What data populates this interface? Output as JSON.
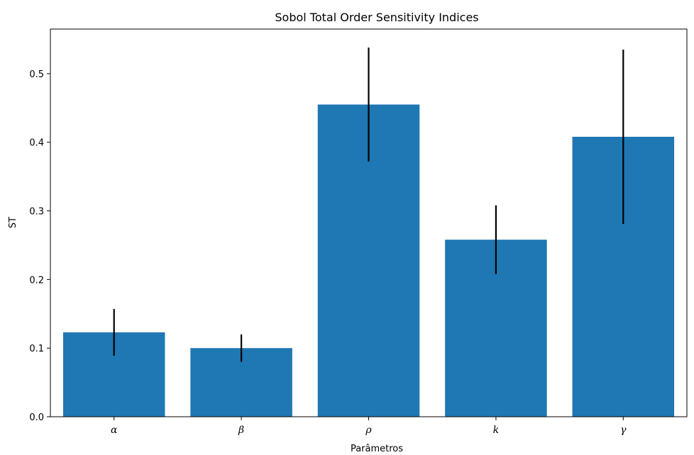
{
  "chart_data": {
    "type": "bar",
    "title": "Sobol Total Order Sensitivity Indices",
    "xlabel": "Parâmetros",
    "ylabel": "ST",
    "categories": [
      "α",
      "β",
      "ρ",
      "k",
      "γ"
    ],
    "values": [
      0.123,
      0.1,
      0.455,
      0.258,
      0.408
    ],
    "errors": [
      0.034,
      0.02,
      0.083,
      0.05,
      0.127
    ],
    "ylim": [
      0,
      0.565
    ],
    "yticks": [
      0.0,
      0.1,
      0.2,
      0.3,
      0.4,
      0.5
    ],
    "yticklabels": [
      "0.0",
      "0.1",
      "0.2",
      "0.3",
      "0.4",
      "0.5"
    ],
    "grid": false,
    "bar_color": "#1f77b4",
    "error_color": "#000000"
  }
}
